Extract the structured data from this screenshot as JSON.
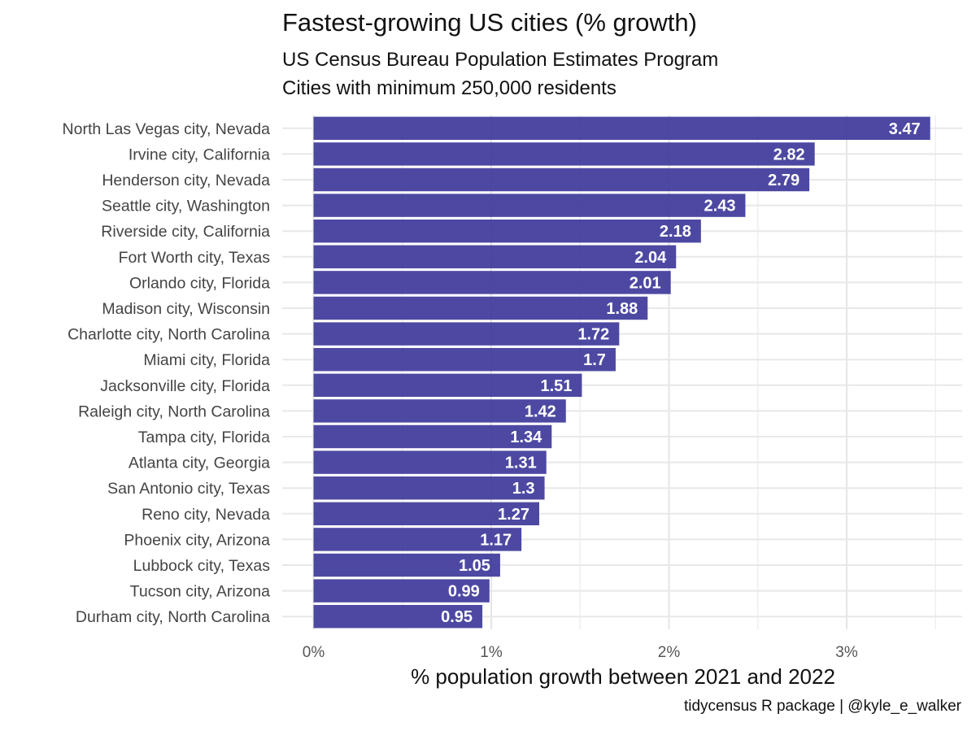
{
  "chart_data": {
    "type": "bar",
    "orientation": "horizontal",
    "title": "Fastest-growing US cities (% growth)",
    "subtitle_lines": [
      "US Census Bureau Population Estimates Program",
      "Cities with minimum 250,000 residents"
    ],
    "xlabel": "% population growth between 2021 and 2022",
    "ylabel": "",
    "caption": "tidycensus R package | @kyle_e_walker",
    "xlim": [
      0,
      3.5
    ],
    "x_ticks": [
      {
        "value": 0,
        "label": "0%"
      },
      {
        "value": 1,
        "label": "1%"
      },
      {
        "value": 2,
        "label": "2%"
      },
      {
        "value": 3,
        "label": "3%"
      }
    ],
    "grid": true,
    "bar_color": "#3f3b9b",
    "label_color": "#ffffff",
    "categories": [
      "North Las Vegas city, Nevada",
      "Irvine city, California",
      "Henderson city, Nevada",
      "Seattle city, Washington",
      "Riverside city, California",
      "Fort Worth city, Texas",
      "Orlando city, Florida",
      "Madison city, Wisconsin",
      "Charlotte city, North Carolina",
      "Miami city, Florida",
      "Jacksonville city, Florida",
      "Raleigh city, North Carolina",
      "Tampa city, Florida",
      "Atlanta city, Georgia",
      "San Antonio city, Texas",
      "Reno city, Nevada",
      "Phoenix city, Arizona",
      "Lubbock city, Texas",
      "Tucson city, Arizona",
      "Durham city, North Carolina"
    ],
    "values": [
      3.47,
      2.82,
      2.79,
      2.43,
      2.18,
      2.04,
      2.01,
      1.88,
      1.72,
      1.7,
      1.51,
      1.42,
      1.34,
      1.31,
      1.3,
      1.27,
      1.17,
      1.05,
      0.99,
      0.95
    ],
    "value_labels": [
      "3.47",
      "2.82",
      "2.79",
      "2.43",
      "2.18",
      "2.04",
      "2.01",
      "1.88",
      "1.72",
      "1.7",
      "1.51",
      "1.42",
      "1.34",
      "1.31",
      "1.3",
      "1.27",
      "1.17",
      "1.05",
      "0.99",
      "0.95"
    ]
  }
}
